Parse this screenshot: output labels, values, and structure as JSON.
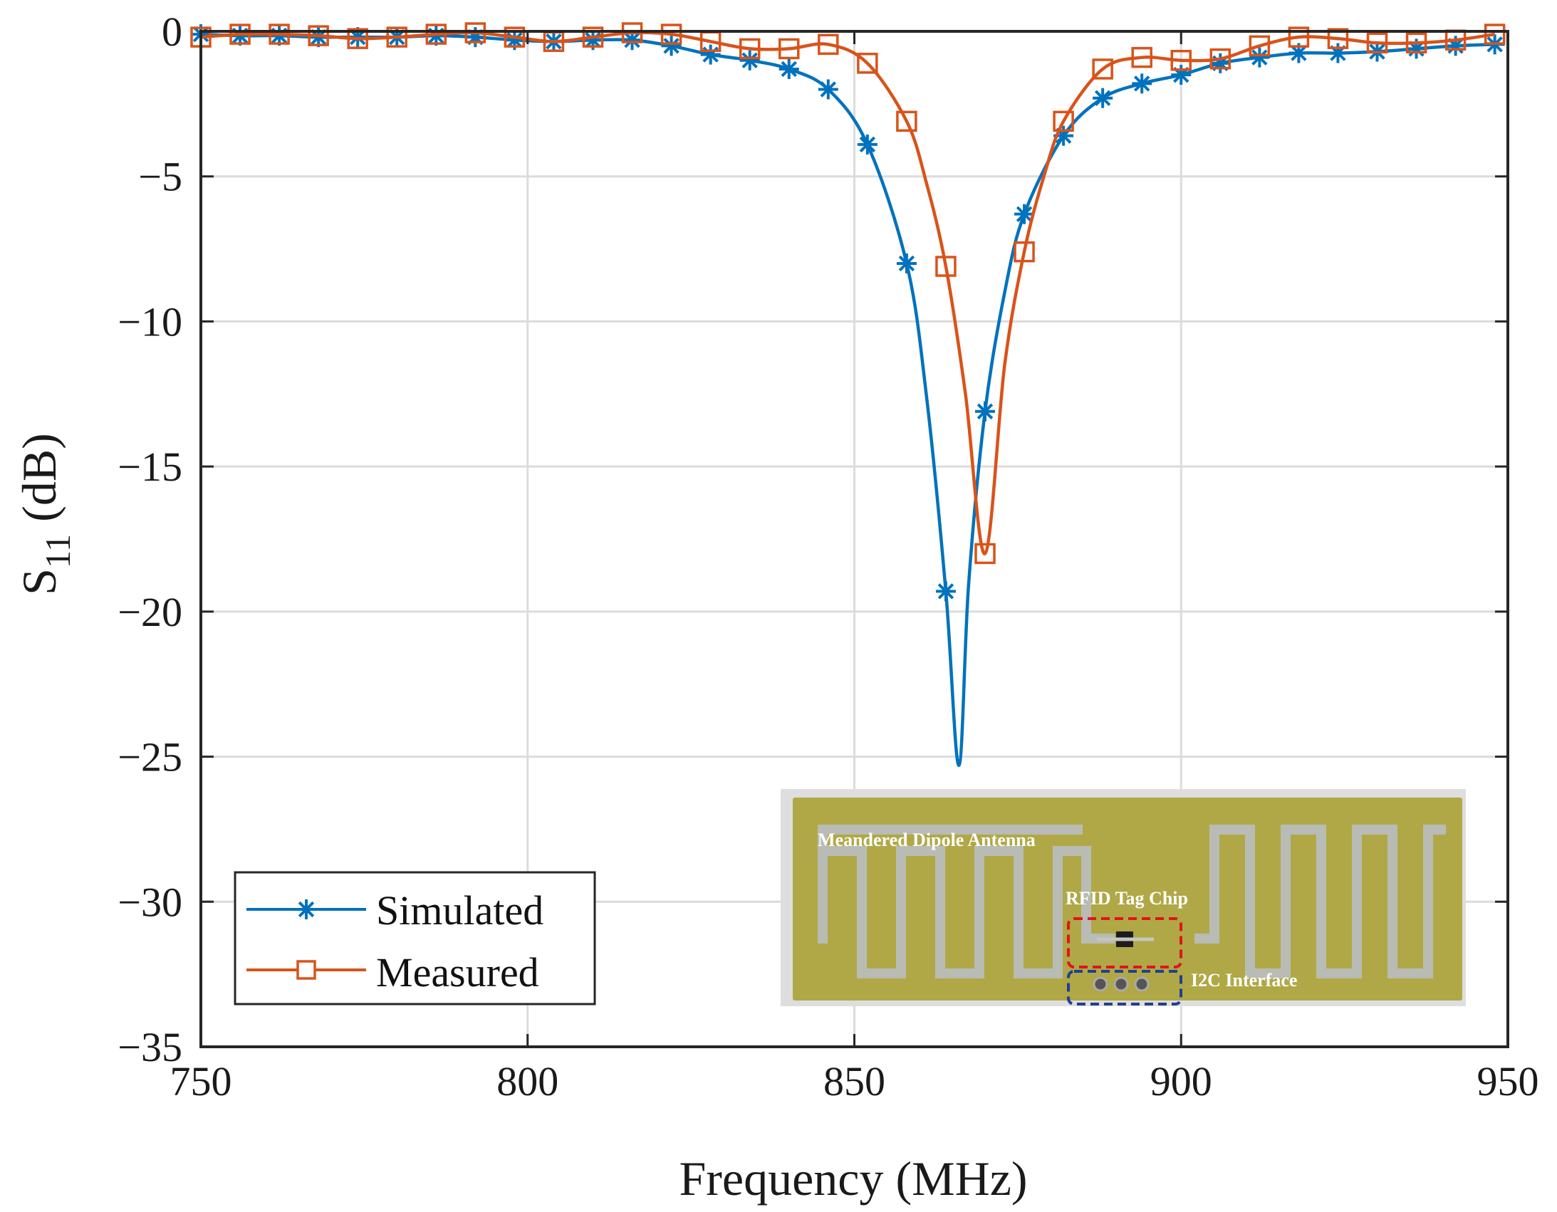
{
  "chart_data": {
    "type": "line",
    "title": "",
    "xlabel": "Frequency (MHz)",
    "ylabel": {
      "base": "S",
      "subscript": "11",
      "suffix": " (dB)"
    },
    "xlim": [
      750,
      950
    ],
    "ylim": [
      -35,
      0
    ],
    "xticks": [
      750,
      800,
      850,
      900,
      950
    ],
    "yticks": [
      0,
      -5,
      -10,
      -15,
      -20,
      -25,
      -30,
      -35
    ],
    "xtick_labels": [
      "750",
      "800",
      "850",
      "900",
      "950"
    ],
    "ytick_labels": [
      "0",
      "−5",
      "−10",
      "−15",
      "−20",
      "−25",
      "−30",
      "−35"
    ],
    "grid": true,
    "legend_position": "bottom-left",
    "series": [
      {
        "name": "Simulated",
        "color": "#0072BD",
        "marker": "asterisk",
        "x": [
          750,
          756,
          762,
          768,
          774,
          780,
          786,
          792,
          798,
          804,
          810,
          816,
          822,
          828,
          834,
          840,
          846,
          852,
          858,
          861,
          864,
          866,
          867.5,
          870,
          873,
          876,
          882,
          888,
          894,
          900,
          906,
          912,
          918,
          924,
          930,
          936,
          942,
          948
        ],
        "values": [
          -0.1,
          -0.15,
          -0.15,
          -0.2,
          -0.2,
          -0.2,
          -0.15,
          -0.2,
          -0.3,
          -0.35,
          -0.3,
          -0.3,
          -0.5,
          -0.8,
          -1.0,
          -1.3,
          -2.0,
          -3.9,
          -8.0,
          -12.5,
          -19.3,
          -25.3,
          -19.0,
          -13.1,
          -9.0,
          -6.3,
          -3.6,
          -2.3,
          -1.8,
          -1.5,
          -1.1,
          -0.9,
          -0.75,
          -0.75,
          -0.7,
          -0.6,
          -0.5,
          -0.45
        ],
        "markers_at": [
          750,
          756,
          762,
          768,
          774,
          780,
          786,
          792,
          798,
          804,
          810,
          816,
          822,
          828,
          834,
          840,
          846,
          852,
          858,
          864,
          870,
          876,
          882,
          888,
          894,
          900,
          906,
          912,
          918,
          924,
          930,
          936,
          942,
          948
        ]
      },
      {
        "name": "Measured",
        "color": "#D95319",
        "marker": "square",
        "x": [
          750,
          756,
          762,
          768,
          774,
          780,
          786,
          792,
          798,
          804,
          810,
          816,
          822,
          828,
          834,
          840,
          846,
          852,
          858,
          861,
          864,
          867,
          870,
          873,
          876,
          879,
          882,
          888,
          894,
          900,
          906,
          912,
          918,
          924,
          930,
          936,
          942,
          948
        ],
        "values": [
          -0.2,
          -0.1,
          -0.1,
          -0.15,
          -0.25,
          -0.2,
          -0.1,
          -0.05,
          -0.2,
          -0.35,
          -0.2,
          -0.05,
          -0.1,
          -0.35,
          -0.6,
          -0.6,
          -0.45,
          -1.1,
          -3.1,
          -5.2,
          -8.1,
          -12.5,
          -18.0,
          -11.5,
          -7.6,
          -5.0,
          -3.1,
          -1.3,
          -0.9,
          -1.0,
          -0.95,
          -0.5,
          -0.2,
          -0.25,
          -0.4,
          -0.4,
          -0.3,
          -0.1
        ],
        "markers_at": [
          750,
          756,
          762,
          768,
          774,
          780,
          786,
          792,
          798,
          804,
          810,
          816,
          822,
          828,
          834,
          840,
          846,
          852,
          858,
          864,
          870,
          876,
          882,
          888,
          894,
          900,
          906,
          912,
          918,
          924,
          930,
          936,
          942,
          948
        ]
      }
    ],
    "inset": {
      "labels": {
        "antenna": "Meandered Dipole Antenna",
        "chip": "RFID Tag Chip",
        "interface": "I2C Interface"
      },
      "colors": {
        "board": "#b0a846",
        "trace": "#b9bcb4",
        "chip_box": "#e0141c",
        "interface_box": "#1f3f93"
      }
    }
  }
}
